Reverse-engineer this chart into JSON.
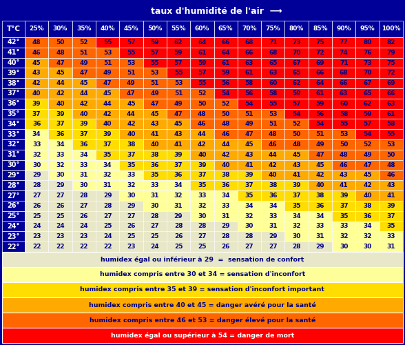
{
  "title": "taux d'humidité de l'air  ⟶",
  "col_header": [
    "25%",
    "30%",
    "35%",
    "40%",
    "45%",
    "50%",
    "55%",
    "60%",
    "65%",
    "70%",
    "75%",
    "80%",
    "85%",
    "90%",
    "95%",
    "100%"
  ],
  "row_header": [
    "42°",
    "41°",
    "40°",
    "39°",
    "38°",
    "37°",
    "36°",
    "35°",
    "34°",
    "33°",
    "32°",
    "31°",
    "30°",
    "29°",
    "28°",
    "27°",
    "26°",
    "25°",
    "24°",
    "23°",
    "22°"
  ],
  "row_label": "T°C",
  "data": [
    [
      48,
      50,
      52,
      55,
      57,
      59,
      62,
      64,
      66,
      68,
      71,
      73,
      75,
      77,
      80,
      82
    ],
    [
      46,
      48,
      51,
      53,
      55,
      57,
      59,
      61,
      64,
      66,
      68,
      70,
      72,
      74,
      76,
      79
    ],
    [
      45,
      47,
      49,
      51,
      53,
      55,
      57,
      59,
      61,
      63,
      65,
      67,
      69,
      71,
      73,
      75
    ],
    [
      43,
      45,
      47,
      49,
      51,
      53,
      55,
      57,
      59,
      61,
      63,
      65,
      66,
      68,
      70,
      72
    ],
    [
      42,
      44,
      45,
      47,
      49,
      51,
      53,
      55,
      56,
      58,
      60,
      62,
      64,
      66,
      67,
      69
    ],
    [
      40,
      42,
      44,
      45,
      47,
      49,
      51,
      52,
      54,
      56,
      58,
      59,
      61,
      63,
      65,
      66
    ],
    [
      39,
      40,
      42,
      44,
      45,
      47,
      49,
      50,
      52,
      54,
      55,
      57,
      59,
      60,
      62,
      63
    ],
    [
      37,
      39,
      40,
      42,
      44,
      45,
      47,
      48,
      50,
      51,
      53,
      54,
      56,
      58,
      59,
      61
    ],
    [
      36,
      37,
      39,
      40,
      42,
      43,
      45,
      46,
      48,
      49,
      51,
      52,
      54,
      55,
      57,
      58
    ],
    [
      34,
      36,
      37,
      39,
      40,
      41,
      43,
      44,
      46,
      47,
      48,
      50,
      51,
      53,
      54,
      55
    ],
    [
      33,
      34,
      36,
      37,
      38,
      40,
      41,
      42,
      44,
      45,
      46,
      48,
      49,
      50,
      52,
      53
    ],
    [
      32,
      33,
      34,
      35,
      37,
      38,
      39,
      40,
      42,
      43,
      44,
      45,
      47,
      48,
      49,
      50
    ],
    [
      30,
      32,
      33,
      34,
      35,
      36,
      37,
      39,
      40,
      41,
      42,
      43,
      45,
      46,
      47,
      48
    ],
    [
      29,
      30,
      31,
      32,
      33,
      35,
      36,
      37,
      38,
      39,
      40,
      41,
      42,
      43,
      45,
      46
    ],
    [
      28,
      29,
      30,
      31,
      32,
      33,
      34,
      35,
      36,
      37,
      38,
      39,
      40,
      41,
      42,
      43
    ],
    [
      27,
      27,
      28,
      29,
      30,
      31,
      32,
      33,
      34,
      35,
      36,
      37,
      38,
      39,
      40,
      41
    ],
    [
      26,
      26,
      27,
      28,
      29,
      30,
      31,
      32,
      33,
      34,
      34,
      35,
      36,
      37,
      38,
      39
    ],
    [
      25,
      25,
      26,
      27,
      27,
      28,
      29,
      30,
      31,
      32,
      33,
      34,
      34,
      35,
      36,
      37
    ],
    [
      24,
      24,
      24,
      25,
      26,
      27,
      28,
      28,
      29,
      30,
      31,
      32,
      33,
      33,
      34,
      35
    ],
    [
      23,
      23,
      23,
      24,
      25,
      25,
      26,
      27,
      28,
      28,
      29,
      30,
      31,
      32,
      32,
      33
    ],
    [
      22,
      22,
      22,
      22,
      23,
      24,
      25,
      25,
      26,
      27,
      27,
      28,
      29,
      30,
      30,
      31
    ]
  ],
  "legend_entries": [
    {
      "text": "humidex égal ou inférieur à 29  =  sensation de confort",
      "bg": "#e8e8c8",
      "fg": "#000080",
      "bold": true
    },
    {
      "text": "humidex compris entre 30 et 34 = sensation d'inconfort",
      "bg": "#ffff99",
      "fg": "#000080",
      "bold": true
    },
    {
      "text": "humidex compris entre 35 et 39 = sensation d'inconfort important",
      "bg": "#ffdd00",
      "fg": "#000080",
      "bold": true
    },
    {
      "text": "humidex compris entre 40 et 45 = danger avéré pour la santé",
      "bg": "#ffaa00",
      "fg": "#000080",
      "bold": true
    },
    {
      "text": "humidex compris entre 46 et 53 = danger élevé pour la santé",
      "bg": "#ff6600",
      "fg": "#000080",
      "bold": true
    },
    {
      "text": "humidex égal ou supérieur à 54 = danger de mort",
      "bg": "#ff0000",
      "fg": "#ffffff",
      "bold": true
    }
  ],
  "bg_color": "#000099",
  "cell_colors": {
    "<=29": "#e8e8c8",
    "30-34": "#ffff99",
    "35-39": "#ffdd00",
    "40-45": "#ffaa00",
    "46-53": "#ff6600",
    ">=54": "#ff0000"
  }
}
